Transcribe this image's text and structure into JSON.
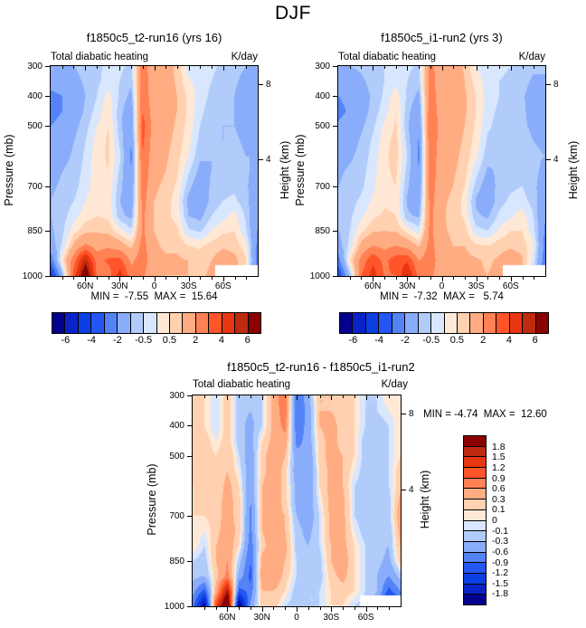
{
  "title": "DJF",
  "palette": [
    "#03008D",
    "#0A23C8",
    "#0B3FE3",
    "#2356F2",
    "#5383F7",
    "#89ADFA",
    "#B1CCFB",
    "#D8E7FD",
    "#FFE9D6",
    "#FFD1B0",
    "#FFAC83",
    "#FF8154",
    "#FF5528",
    "#E93612",
    "#BE2B0E",
    "#8B0000"
  ],
  "axes": {
    "pressure_label": "Pressure (mb)",
    "height_label": "Height (km)",
    "pressure_ticks": [
      300,
      400,
      500,
      700,
      850,
      1000
    ],
    "height_ticks": [
      {
        "km": "8",
        "frac": 0.086
      },
      {
        "km": "4",
        "frac": 0.445
      }
    ],
    "lat_tick_labels": [
      "60N",
      "30N",
      "0",
      "30S",
      "60S"
    ],
    "lat_range": [
      90,
      -90
    ]
  },
  "colorbar_top": {
    "boundaries": [
      -6,
      -5,
      -4,
      -3,
      -2,
      -1,
      -0.5,
      0,
      0.5,
      1,
      2,
      3,
      4,
      5,
      6
    ],
    "shown_labels": [
      "-6",
      "-4",
      "-2",
      "-0.5",
      "0.5",
      "2",
      "4",
      "6"
    ],
    "shown_at_boundary_index": [
      1,
      3,
      5,
      7,
      9,
      11,
      13,
      15
    ]
  },
  "colorbar_diff": {
    "boundaries_top_to_bottom": [
      "1.8",
      "1.5",
      "1.2",
      "0.9",
      "0.6",
      "0.3",
      "0.1",
      "0",
      "-0.1",
      "-0.3",
      "-0.6",
      "-0.9",
      "-1.2",
      "-1.5",
      "-1.8"
    ]
  },
  "chart_data": [
    {
      "type": "heatmap",
      "title": "f1850c5_t2-run16 (yrs 16)",
      "left_string": "Total diabatic heating",
      "right_string": "K/day",
      "min": -7.55,
      "max": 15.64,
      "minmax_text": "MIN =  -7.55  MAX =  15.64",
      "x_lats": [
        90,
        80,
        70,
        60,
        50,
        40,
        30,
        20,
        10,
        0,
        -10,
        -20,
        -30,
        -40,
        -50,
        -60,
        -70,
        -80,
        -90
      ],
      "y_levels_mb": [
        300,
        350,
        400,
        450,
        500,
        550,
        600,
        650,
        700,
        750,
        800,
        850,
        900,
        950,
        1000
      ],
      "contour_levels": [
        -6,
        -5,
        -4,
        -3,
        -2,
        -1,
        -0.5,
        0,
        0.5,
        1,
        2,
        3,
        4,
        5,
        6
      ],
      "mask_rect": {
        "x_frac": 0.795,
        "y_frac": 0.947
      },
      "values": [
        [
          -1.2,
          -1.2,
          -1.0,
          -0.8,
          -0.6,
          -0.4,
          -0.4,
          -0.6,
          2.6,
          1.2,
          1.4,
          0.8,
          -0.2,
          -0.4,
          -0.4,
          -0.6,
          -0.8,
          -1.0,
          -1.0
        ],
        [
          -1.7,
          -1.6,
          -1.2,
          -0.9,
          -0.6,
          -0.3,
          -0.5,
          -0.9,
          2.7,
          1.2,
          1.4,
          0.9,
          0.1,
          -0.3,
          -0.5,
          -0.7,
          -0.9,
          -1.2,
          -1.2
        ],
        [
          -2.2,
          -2.0,
          -1.4,
          -1.0,
          -0.5,
          0.2,
          -0.6,
          -1.2,
          2.8,
          1.3,
          1.4,
          1.0,
          0.4,
          -0.3,
          -0.6,
          -0.8,
          -1.0,
          -1.4,
          -1.4
        ],
        [
          -2.4,
          -2.0,
          -1.4,
          -0.9,
          -0.3,
          0.4,
          -0.8,
          -1.6,
          3.0,
          1.4,
          1.3,
          1.0,
          0.4,
          -0.4,
          -0.7,
          -0.9,
          -1.0,
          -1.3,
          -1.3
        ],
        [
          -2.0,
          -1.6,
          -1.2,
          -0.7,
          0.0,
          0.5,
          -0.8,
          -1.8,
          3.4,
          1.5,
          1.3,
          0.9,
          0.3,
          -0.5,
          -0.8,
          -1.0,
          -1.0,
          -1.2,
          -1.2
        ],
        [
          -1.6,
          -1.4,
          -1.0,
          -0.5,
          0.2,
          0.6,
          -0.6,
          -2.0,
          3.2,
          1.4,
          1.2,
          0.8,
          0.2,
          -0.7,
          -0.9,
          -1.0,
          -0.9,
          -1.1,
          -1.1
        ],
        [
          -1.4,
          -1.2,
          -0.9,
          -0.4,
          0.3,
          0.6,
          -0.4,
          -2.2,
          3.0,
          1.3,
          1.1,
          0.7,
          0.0,
          -0.9,
          -1.0,
          -0.9,
          -0.8,
          -1.0,
          -1.0
        ],
        [
          -1.2,
          -1.0,
          -0.8,
          -0.3,
          0.3,
          0.5,
          -0.6,
          -2.0,
          2.8,
          1.2,
          1.0,
          0.6,
          -0.4,
          -1.2,
          -1.0,
          -0.8,
          -0.7,
          -0.9,
          -1.2
        ],
        [
          -1.1,
          -0.9,
          -0.7,
          -0.2,
          0.3,
          0.4,
          -0.8,
          -1.8,
          2.6,
          1.1,
          0.9,
          0.4,
          -0.8,
          -1.5,
          -0.9,
          -0.7,
          -0.6,
          -0.9,
          -1.4
        ],
        [
          -1.0,
          -0.8,
          -0.5,
          0.0,
          0.3,
          0.3,
          -1.0,
          -1.6,
          2.4,
          1.0,
          0.8,
          0.2,
          -1.2,
          -1.6,
          -0.8,
          -0.5,
          -0.4,
          -0.8,
          -1.6
        ],
        [
          -1.0,
          -0.7,
          -0.2,
          0.3,
          0.5,
          0.4,
          -0.8,
          -1.2,
          2.2,
          1.0,
          0.7,
          0.3,
          -1.0,
          -1.2,
          -0.5,
          -0.2,
          0.2,
          -0.6,
          -1.8
        ],
        [
          -1.1,
          -0.6,
          0.3,
          0.8,
          0.9,
          0.8,
          0.2,
          -0.4,
          2.2,
          1.0,
          0.8,
          0.6,
          -0.4,
          -0.6,
          0.0,
          0.4,
          0.5,
          -0.4,
          -2.0
        ],
        [
          -1.4,
          -0.4,
          1.2,
          2.2,
          1.6,
          1.8,
          1.4,
          0.8,
          2.4,
          1.1,
          0.9,
          0.9,
          0.5,
          0.4,
          0.7,
          0.9,
          0.8,
          0.2,
          -2.2
        ],
        [
          -2.6,
          0.4,
          2.6,
          5.5,
          2.6,
          3.2,
          3.4,
          1.8,
          2.6,
          1.2,
          1.1,
          1.1,
          1.0,
          0.8,
          1.0,
          1.4,
          1.2,
          0.6,
          -2.4
        ],
        [
          -4.5,
          -1.0,
          3.5,
          7.5,
          2.8,
          2.4,
          4.5,
          2.4,
          2.2,
          1.1,
          1.0,
          1.0,
          1.0,
          0.9,
          1.1,
          1.5,
          1.2,
          0.5,
          -2.6
        ]
      ]
    },
    {
      "type": "heatmap",
      "title": "f1850c5_i1-run2 (yrs 3)",
      "left_string": "Total diabatic heating",
      "right_string": "K/day",
      "min": -7.32,
      "max": 5.74,
      "minmax_text": "MIN =  -7.32  MAX =   5.74",
      "x_lats": [
        90,
        80,
        70,
        60,
        50,
        40,
        30,
        20,
        10,
        0,
        -10,
        -20,
        -30,
        -40,
        -50,
        -60,
        -70,
        -80,
        -90
      ],
      "y_levels_mb": [
        300,
        350,
        400,
        450,
        500,
        550,
        600,
        650,
        700,
        750,
        800,
        850,
        900,
        950,
        1000
      ],
      "contour_levels": [
        -6,
        -5,
        -4,
        -3,
        -2,
        -1,
        -0.5,
        0,
        0.5,
        1,
        2,
        3,
        4,
        5,
        6
      ],
      "mask_rect": {
        "x_frac": 0.795,
        "y_frac": 0.947
      },
      "values": [
        [
          -1.0,
          -1.0,
          -0.9,
          -0.7,
          -0.5,
          -0.3,
          -0.4,
          -0.6,
          2.4,
          1.2,
          1.5,
          0.9,
          0.0,
          -0.3,
          -0.4,
          -0.5,
          -0.7,
          -0.9,
          -0.9
        ],
        [
          -1.4,
          -1.3,
          -1.1,
          -0.8,
          -0.5,
          -0.2,
          -0.5,
          -0.8,
          2.6,
          1.2,
          1.5,
          1.0,
          0.3,
          -0.3,
          -0.5,
          -0.6,
          -0.8,
          -1.1,
          -1.1
        ],
        [
          -2.0,
          -1.8,
          -1.3,
          -0.9,
          -0.4,
          0.3,
          -0.6,
          -1.2,
          2.6,
          1.3,
          1.5,
          1.1,
          0.5,
          -0.2,
          -0.5,
          -0.7,
          -0.9,
          -1.3,
          -1.3
        ],
        [
          -2.2,
          -1.9,
          -1.3,
          -0.8,
          -0.2,
          0.5,
          -0.8,
          -1.6,
          2.8,
          1.4,
          1.4,
          1.1,
          0.5,
          -0.3,
          -0.6,
          -0.8,
          -0.9,
          -1.2,
          -1.3
        ],
        [
          -1.9,
          -1.5,
          -1.1,
          -0.6,
          0.1,
          0.6,
          -0.9,
          -1.9,
          3.0,
          1.5,
          1.4,
          1.0,
          0.4,
          -0.4,
          -0.7,
          -0.9,
          -0.9,
          -1.1,
          -1.2
        ],
        [
          -1.5,
          -1.3,
          -0.9,
          -0.4,
          0.3,
          0.7,
          -0.7,
          -2.1,
          2.9,
          1.4,
          1.3,
          0.9,
          0.3,
          -0.6,
          -0.8,
          -0.9,
          -0.8,
          -1.0,
          -1.1
        ],
        [
          -1.3,
          -1.1,
          -0.8,
          -0.3,
          0.4,
          0.7,
          -0.5,
          -2.2,
          2.8,
          1.3,
          1.2,
          0.8,
          0.1,
          -0.8,
          -0.9,
          -0.8,
          -0.7,
          -0.9,
          -1.0
        ],
        [
          -1.1,
          -0.9,
          -0.7,
          -0.2,
          0.4,
          0.6,
          -0.7,
          -2.0,
          2.7,
          1.2,
          1.1,
          0.7,
          -0.3,
          -1.1,
          -0.9,
          -0.7,
          -0.6,
          -0.8,
          -1.2
        ],
        [
          -1.0,
          -0.8,
          -0.6,
          -0.1,
          0.4,
          0.5,
          -0.9,
          -1.8,
          2.6,
          1.2,
          1.0,
          0.5,
          -0.7,
          -1.4,
          -0.8,
          -0.6,
          -0.5,
          -0.8,
          -1.5
        ],
        [
          -0.9,
          -0.7,
          -0.4,
          0.1,
          0.4,
          0.4,
          -1.1,
          -1.5,
          2.4,
          1.1,
          0.9,
          0.3,
          -1.1,
          -1.5,
          -0.7,
          -0.4,
          -0.3,
          -0.7,
          -1.7
        ],
        [
          -0.9,
          -0.6,
          -0.1,
          0.4,
          0.6,
          0.5,
          -0.9,
          -1.1,
          2.3,
          1.1,
          0.8,
          0.4,
          -0.9,
          -1.1,
          -0.4,
          -0.1,
          0.3,
          -0.5,
          -1.9
        ],
        [
          -1.0,
          -0.5,
          0.4,
          0.9,
          1.0,
          0.9,
          0.3,
          -0.3,
          2.3,
          1.1,
          0.9,
          0.7,
          -0.3,
          -0.5,
          0.1,
          0.5,
          0.5,
          -0.3,
          -2.1
        ],
        [
          -1.3,
          -0.3,
          1.3,
          2.0,
          1.7,
          2.0,
          1.6,
          0.9,
          2.4,
          1.2,
          1.0,
          1.0,
          0.6,
          0.5,
          0.8,
          0.9,
          0.8,
          0.1,
          -2.3
        ],
        [
          -2.4,
          0.5,
          2.4,
          3.8,
          2.7,
          3.6,
          3.8,
          2.0,
          2.6,
          1.3,
          1.2,
          1.2,
          1.1,
          0.9,
          1.1,
          1.4,
          1.1,
          -0.2,
          -2.5
        ],
        [
          -4.0,
          -0.8,
          3.0,
          4.5,
          2.9,
          3.0,
          5.2,
          2.6,
          2.3,
          1.2,
          1.1,
          1.1,
          1.1,
          1.0,
          1.2,
          1.5,
          1.0,
          -0.8,
          -2.8
        ]
      ]
    },
    {
      "type": "heatmap",
      "title": "f1850c5_t2-run16 - f1850c5_i1-run2",
      "left_string": "Total diabatic heating",
      "right_string": "K/day",
      "min": -4.74,
      "max": 12.6,
      "minmax_text": "MIN = -4.74  MAX =  12.60",
      "x_lats": [
        90,
        80,
        70,
        60,
        50,
        40,
        30,
        20,
        10,
        0,
        -10,
        -20,
        -30,
        -40,
        -50,
        -60,
        -70,
        -80,
        -90
      ],
      "y_levels_mb": [
        300,
        350,
        400,
        450,
        500,
        550,
        600,
        650,
        700,
        750,
        800,
        850,
        900,
        950,
        1000
      ],
      "contour_levels": [
        -1.8,
        -1.5,
        -1.2,
        -0.9,
        -0.6,
        -0.3,
        -0.1,
        0,
        0.1,
        0.3,
        0.6,
        0.9,
        1.2,
        1.5,
        1.8
      ],
      "mask_rect": {
        "x_frac": 0.805,
        "y_frac": 0.948
      },
      "values": [
        [
          0.2,
          0.1,
          -0.1,
          0.2,
          -0.2,
          -0.3,
          -0.1,
          0.4,
          0.9,
          -0.9,
          -0.4,
          0.3,
          0.3,
          0.2,
          0.1,
          -0.1,
          -0.1,
          0.1,
          0.1
        ],
        [
          0.2,
          0.1,
          -0.1,
          0.2,
          -0.2,
          -0.3,
          -0.1,
          0.4,
          0.8,
          -0.9,
          -0.5,
          0.3,
          0.3,
          0.2,
          0.1,
          -0.1,
          -0.1,
          0.0,
          0.1
        ],
        [
          0.1,
          0.1,
          -0.1,
          0.2,
          -0.2,
          -0.4,
          -0.1,
          0.4,
          0.7,
          -0.8,
          -0.5,
          0.3,
          0.4,
          0.2,
          0.1,
          -0.1,
          -0.2,
          -0.1,
          0.1
        ],
        [
          0.2,
          0.2,
          0.0,
          0.2,
          -0.2,
          -0.4,
          0.1,
          0.4,
          0.5,
          -0.7,
          -0.5,
          0.2,
          0.4,
          0.2,
          0.1,
          -0.2,
          -0.2,
          -0.1,
          0.1
        ],
        [
          0.2,
          0.2,
          0.1,
          0.3,
          -0.1,
          -0.5,
          0.2,
          0.5,
          0.3,
          -0.5,
          -0.6,
          0.2,
          0.4,
          0.3,
          0.1,
          -0.2,
          -0.2,
          -0.1,
          0.1
        ],
        [
          0.2,
          0.2,
          0.1,
          0.3,
          0.0,
          -0.5,
          0.2,
          0.5,
          0.2,
          -0.5,
          -0.6,
          0.1,
          0.4,
          0.3,
          0.0,
          -0.2,
          -0.2,
          -0.1,
          0.2
        ],
        [
          0.1,
          0.2,
          0.1,
          0.4,
          0.1,
          -0.6,
          0.3,
          0.5,
          0.2,
          -0.4,
          -0.6,
          0.1,
          0.4,
          0.3,
          -0.1,
          -0.2,
          -0.1,
          -0.1,
          0.2
        ],
        [
          0.1,
          0.2,
          0.2,
          0.4,
          0.2,
          -0.6,
          0.3,
          0.5,
          0.2,
          -0.4,
          -0.5,
          0.0,
          0.4,
          0.4,
          -0.1,
          -0.2,
          -0.1,
          -0.2,
          0.4
        ],
        [
          0.1,
          0.1,
          0.2,
          0.4,
          0.2,
          -0.7,
          0.3,
          0.4,
          0.3,
          -0.3,
          -0.5,
          -0.1,
          0.4,
          0.4,
          -0.1,
          -0.2,
          -0.1,
          -0.2,
          0.5
        ],
        [
          0.1,
          0.0,
          0.2,
          0.5,
          0.2,
          -0.7,
          0.3,
          0.5,
          0.3,
          -0.2,
          -0.4,
          -0.1,
          0.4,
          0.4,
          0.0,
          -0.2,
          -0.2,
          -0.3,
          0.4
        ],
        [
          0.1,
          -0.1,
          0.3,
          0.5,
          0.1,
          -0.8,
          0.2,
          0.5,
          0.4,
          -0.2,
          -0.3,
          -0.1,
          0.3,
          0.4,
          0.1,
          -0.1,
          -0.2,
          -0.3,
          0.3
        ],
        [
          -0.1,
          -0.2,
          0.3,
          0.6,
          -0.2,
          -0.9,
          0.4,
          0.6,
          0.3,
          -0.1,
          -0.3,
          -0.2,
          0.3,
          0.5,
          0.1,
          -0.1,
          -0.2,
          -0.4,
          0.2
        ],
        [
          -0.2,
          -0.3,
          0.2,
          0.7,
          -0.4,
          -1.0,
          0.5,
          0.6,
          0.2,
          -0.1,
          -0.2,
          -0.2,
          0.2,
          0.4,
          0.1,
          -0.1,
          -0.3,
          -0.6,
          -0.2
        ],
        [
          -0.5,
          -1.0,
          0.4,
          1.8,
          -1.0,
          -0.8,
          0.3,
          0.3,
          0.1,
          -0.2,
          -0.1,
          -0.1,
          0.1,
          0.2,
          0.1,
          -0.1,
          -0.3,
          -1.0,
          -0.6
        ],
        [
          -0.8,
          -2.0,
          1.2,
          2.6,
          -2.2,
          -0.5,
          0.2,
          0.2,
          -0.1,
          -0.2,
          -0.1,
          -0.1,
          0.1,
          0.1,
          -0.1,
          -0.2,
          -0.5,
          -1.8,
          -1.0
        ]
      ]
    }
  ]
}
